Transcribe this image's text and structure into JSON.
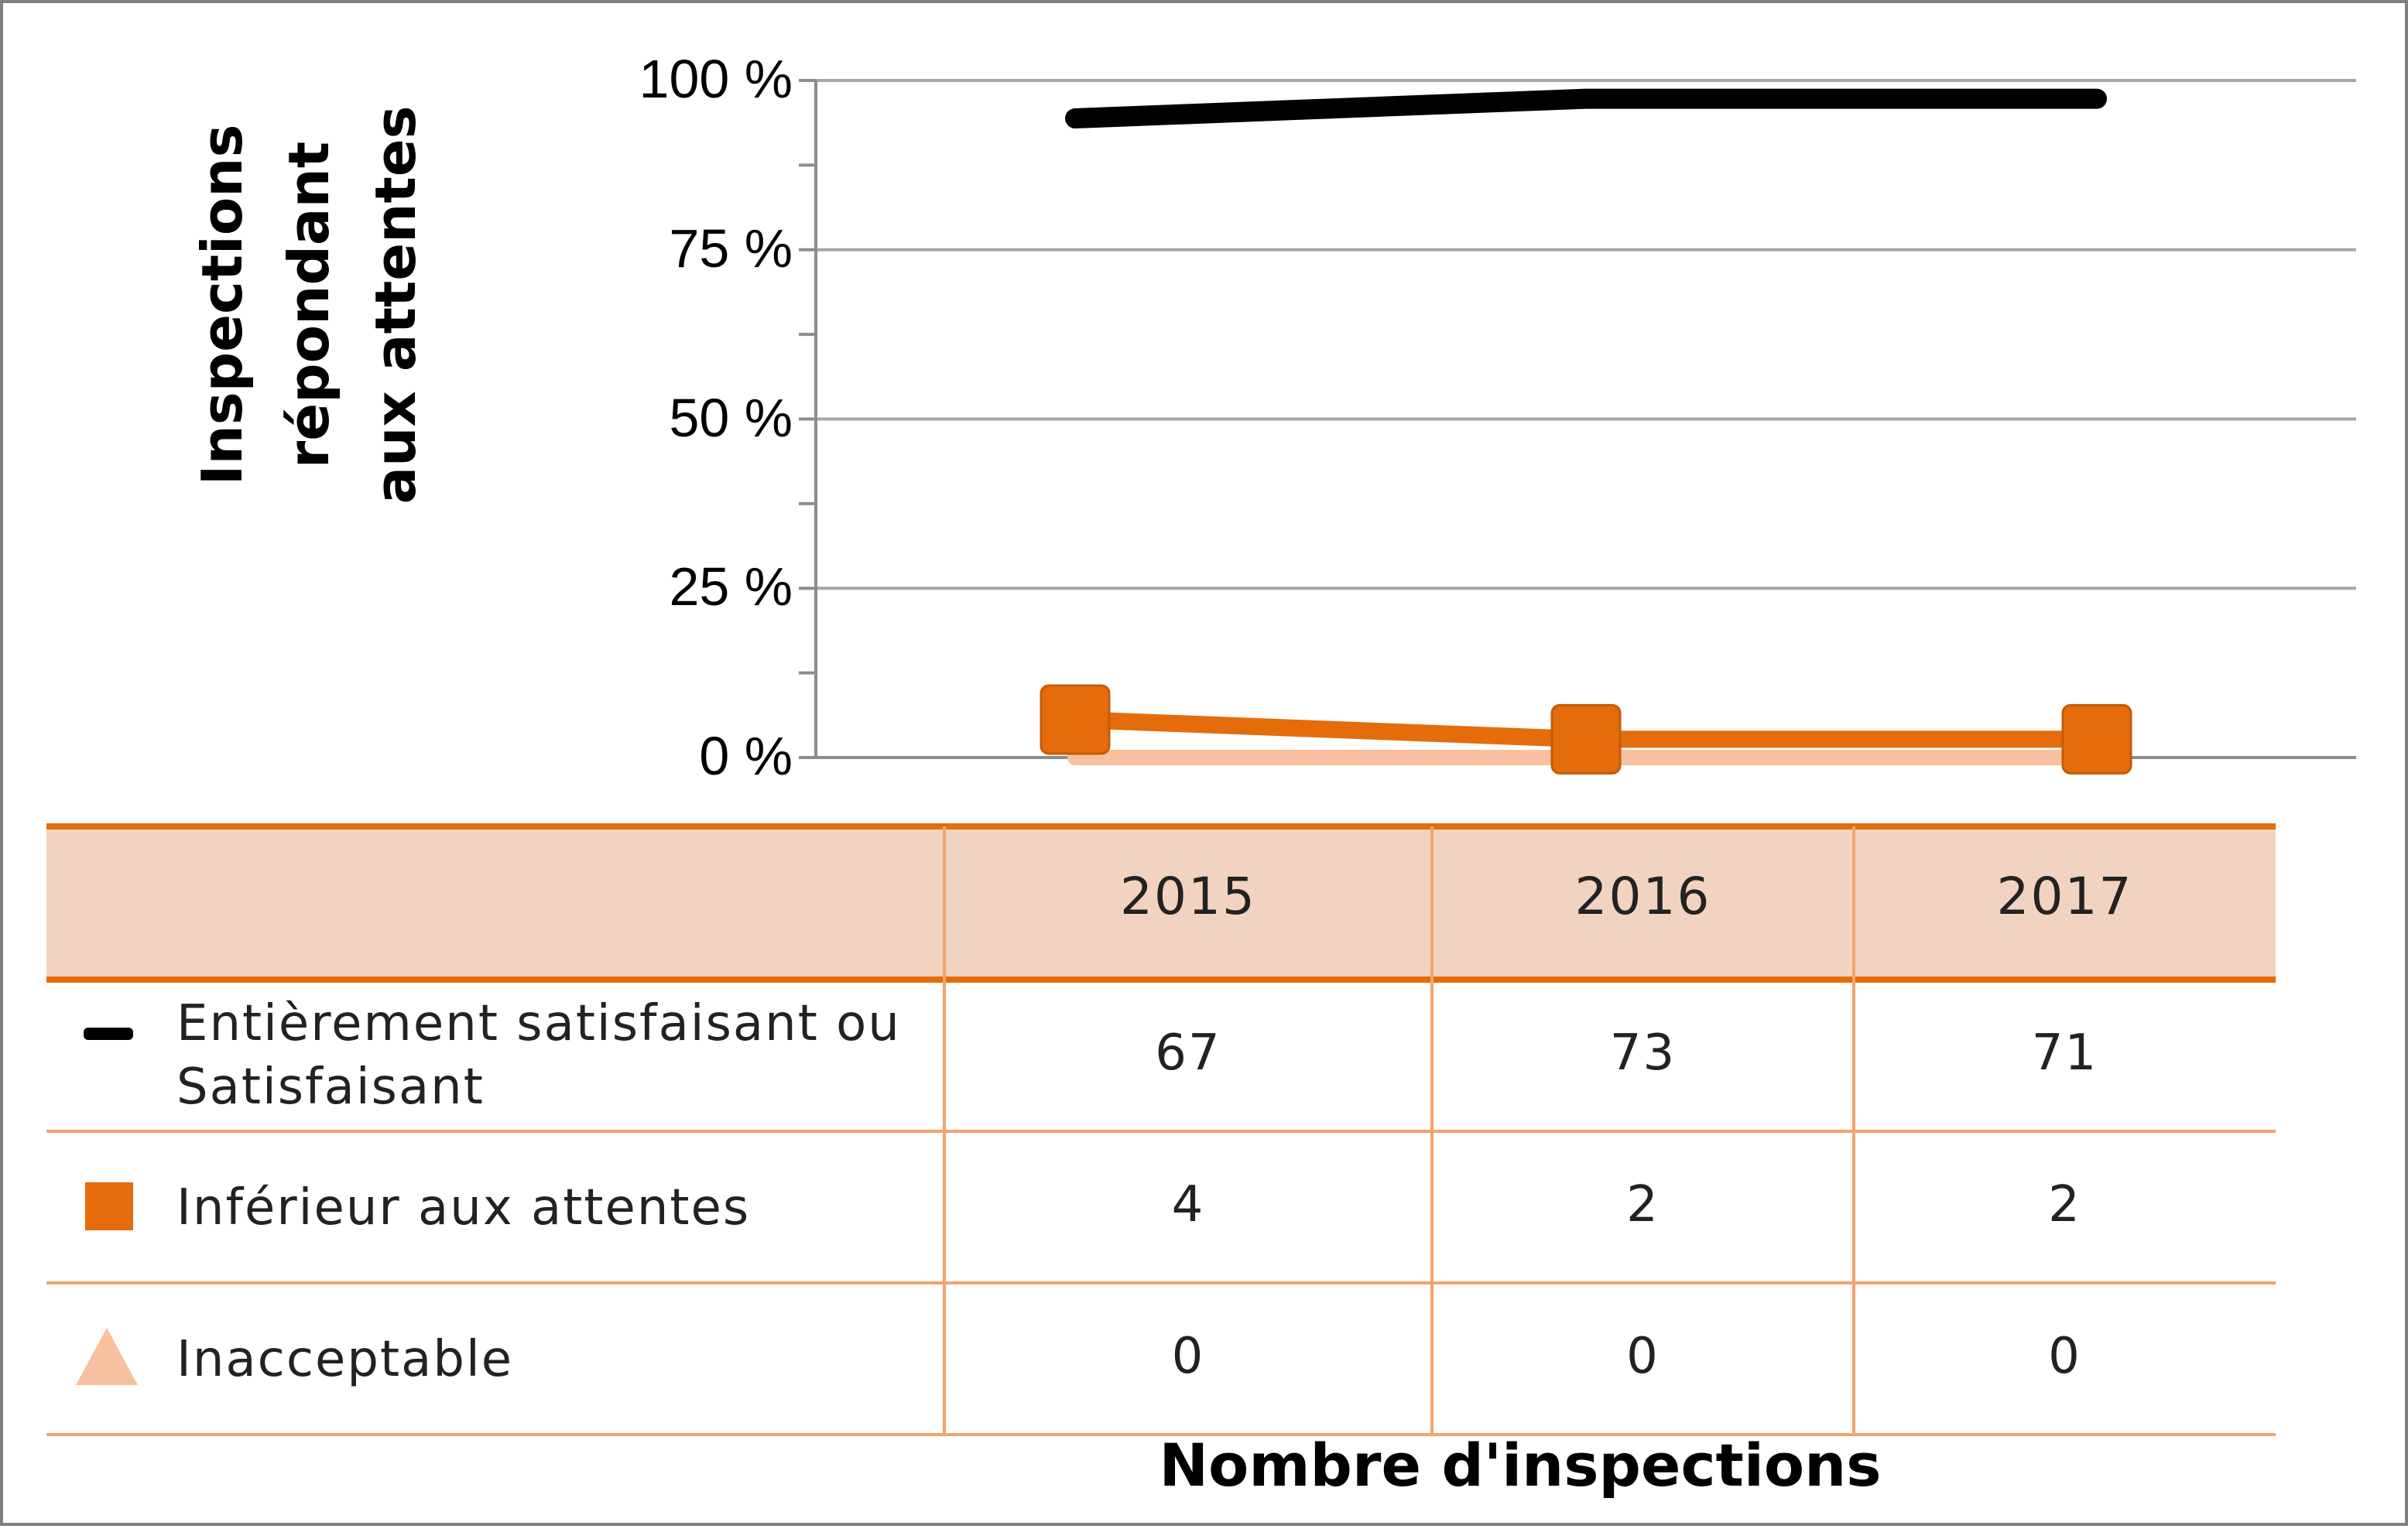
{
  "chart_data": {
    "type": "line",
    "title": "",
    "ylabel": "Inspections répondant\naux attentes",
    "xlabel": "Nombre d'inspections",
    "ylim": [
      0,
      100
    ],
    "yticks": [
      "100 %",
      "75 %",
      "50 %",
      "25 %",
      "0 %"
    ],
    "ytick_values": [
      100,
      75,
      50,
      25,
      0
    ],
    "grid": true,
    "categories": [
      "2015",
      "2016",
      "2017"
    ],
    "series": [
      {
        "name": "Entièrement satisfaisant ou Satisfaisant",
        "marker": "line",
        "color": "#000000",
        "percent": [
          94.4,
          97.3,
          97.3
        ],
        "counts": [
          "67",
          "73",
          "71"
        ]
      },
      {
        "name": "Inférieur aux attentes",
        "marker": "square",
        "color": "#E46C0A",
        "percent": [
          5.6,
          2.7,
          2.7
        ],
        "counts": [
          "4",
          "2",
          "2"
        ]
      },
      {
        "name": "Inacceptable",
        "marker": "triangle",
        "color": "#F9C09F",
        "percent": [
          0,
          0,
          0
        ],
        "counts": [
          "0",
          "0",
          "0"
        ]
      }
    ]
  }
}
